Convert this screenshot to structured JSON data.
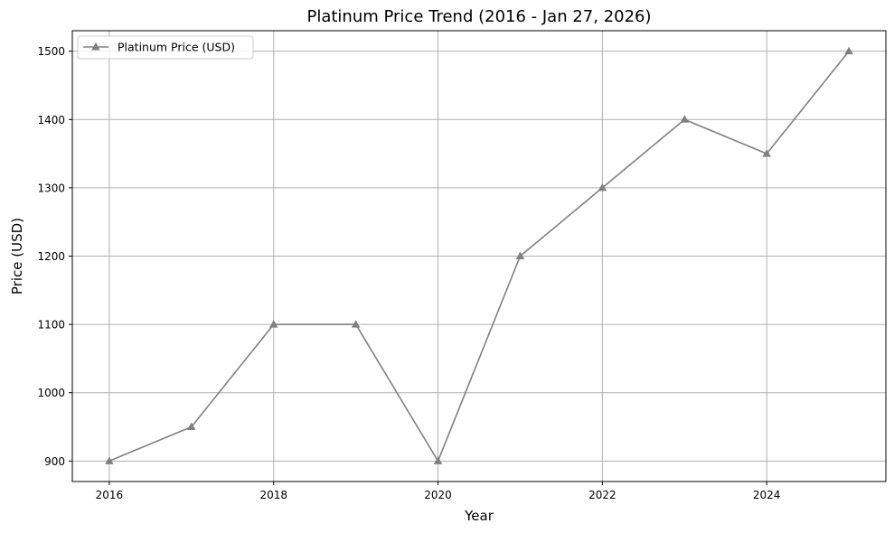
{
  "chart_data": {
    "type": "line",
    "title": "Platinum Price Trend (2016 - Jan 27, 2026)",
    "xlabel": "Year",
    "ylabel": "Price (USD)",
    "xlim": [
      2015.55,
      2025.45
    ],
    "ylim": [
      870,
      1530
    ],
    "xticks": [
      2016,
      2018,
      2020,
      2022,
      2024
    ],
    "yticks": [
      900,
      1000,
      1100,
      1200,
      1300,
      1400,
      1500
    ],
    "grid": true,
    "legend_position": "top-left",
    "series": [
      {
        "name": "Platinum Price (USD)",
        "color": "#808080",
        "marker": "triangle-up",
        "x": [
          2016,
          2017,
          2018,
          2019,
          2020,
          2021,
          2022,
          2023,
          2024,
          2025
        ],
        "y": [
          900,
          950,
          1100,
          1100,
          900,
          1200,
          1300,
          1400,
          1350,
          1500
        ]
      }
    ]
  }
}
